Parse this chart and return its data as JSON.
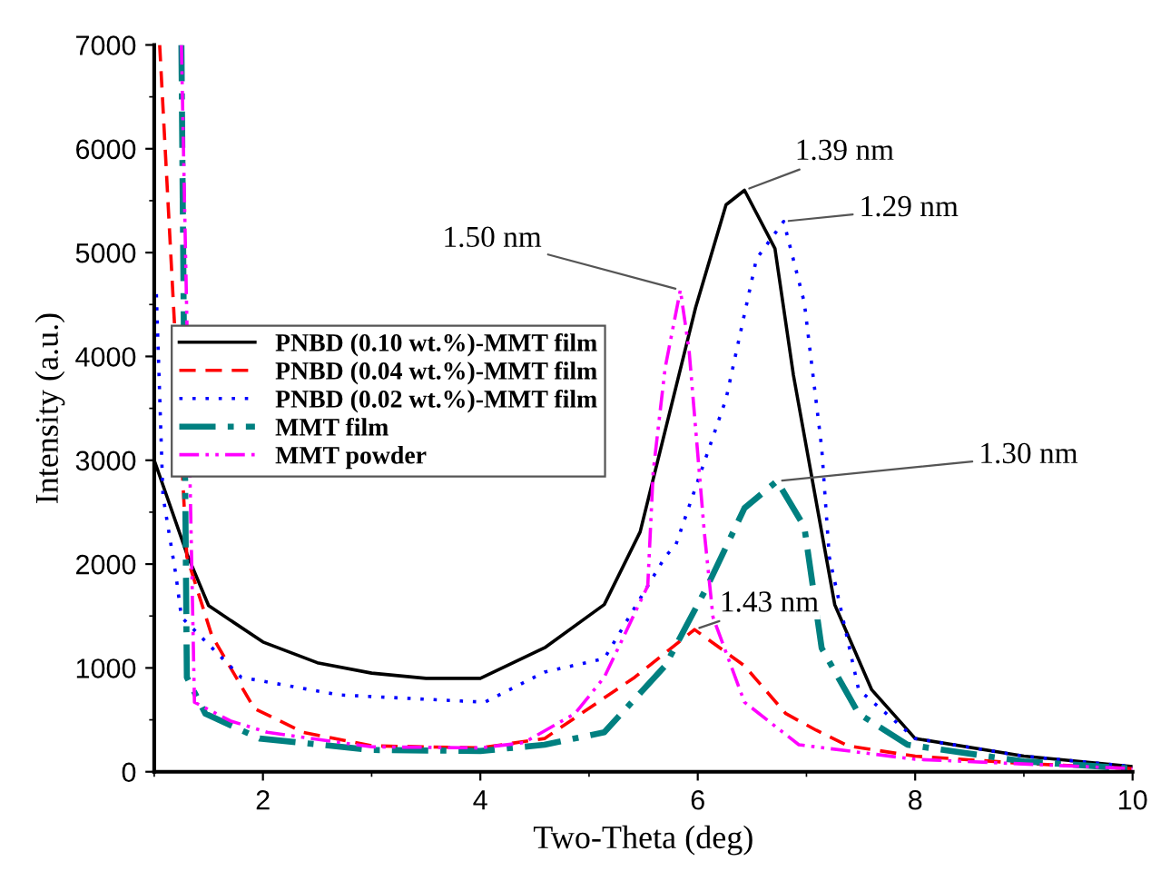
{
  "chart_data": {
    "type": "line",
    "xlabel": "Two-Theta (deg)",
    "ylabel": "Intensity (a.u.)",
    "xlim": [
      1,
      10
    ],
    "ylim": [
      0,
      7000
    ],
    "xticks": [
      2,
      4,
      6,
      8,
      10
    ],
    "yticks": [
      0,
      1000,
      2000,
      3000,
      4000,
      5000,
      6000,
      7000
    ],
    "grid": false,
    "legend": "left",
    "marker": "none",
    "annotations": [
      {
        "text": "1.39 nm",
        "x": 6.43,
        "y": 5600
      },
      {
        "text": "1.29 nm",
        "x": 6.79,
        "y": 5300
      },
      {
        "text": "1.50 nm",
        "x": 5.84,
        "y": 4640
      },
      {
        "text": "1.30 nm",
        "x": 6.73,
        "y": 2800
      },
      {
        "text": "1.43 nm",
        "x": 5.97,
        "y": 1370
      }
    ],
    "series": [
      {
        "name": "PNBD (0.10 wt.%)-MMT film",
        "color": "#000000",
        "line_style": "solid",
        "x": [
          1.0,
          1.3,
          1.5,
          2.0,
          2.5,
          3.0,
          3.5,
          4.0,
          4.6,
          5.14,
          5.47,
          5.98,
          6.26,
          6.43,
          6.71,
          6.88,
          7.04,
          7.26,
          7.6,
          8.0,
          9.0,
          10.0
        ],
        "values": [
          3000,
          2100,
          1600,
          1250,
          1050,
          950,
          900,
          900,
          1200,
          1610,
          2310,
          4470,
          5460,
          5600,
          5040,
          3820,
          2890,
          1610,
          790,
          320,
          150,
          50
        ]
      },
      {
        "name": "PNBD (0.04 wt.%)-MMT film",
        "color": "#ff0000",
        "line_style": "dashed",
        "x": [
          1.05,
          1.3,
          1.53,
          1.92,
          2.37,
          3.0,
          4.0,
          4.59,
          5.42,
          5.97,
          6.43,
          6.81,
          7.09,
          7.38,
          8.0,
          9.0,
          10.0
        ],
        "values": [
          7000,
          2070,
          1310,
          610,
          380,
          250,
          230,
          320,
          910,
          1370,
          1020,
          560,
          400,
          250,
          150,
          80,
          30
        ]
      },
      {
        "name": "PNBD (0.02 wt.%)-MMT film",
        "color": "#0000ff",
        "line_style": "dotted",
        "x": [
          1.02,
          1.08,
          1.2,
          1.25,
          1.8,
          2.7,
          4.04,
          4.59,
          5.14,
          5.7,
          5.8,
          6.26,
          6.54,
          6.79,
          6.98,
          7.14,
          7.21,
          7.48,
          8.0,
          9.0,
          10.0
        ],
        "values": [
          4600,
          2660,
          1890,
          1490,
          910,
          740,
          670,
          960,
          1090,
          2070,
          2190,
          3590,
          4940,
          5300,
          4520,
          3120,
          2070,
          790,
          320,
          150,
          50
        ]
      },
      {
        "name": "MMT film",
        "color": "#008080",
        "line_style": "dashdot",
        "x": [
          1.25,
          1.3,
          1.47,
          1.97,
          3.0,
          4.0,
          4.59,
          5.14,
          5.7,
          6.09,
          6.43,
          6.73,
          6.98,
          7.14,
          7.48,
          7.93,
          9.0,
          10.0
        ],
        "values": [
          7000,
          910,
          560,
          320,
          210,
          200,
          260,
          380,
          1020,
          1790,
          2540,
          2800,
          2360,
          1190,
          560,
          260,
          100,
          30
        ]
      },
      {
        "name": "MMT powder",
        "color": "#ff00ff",
        "line_style": "dashdotdot",
        "x": [
          1.25,
          1.37,
          1.7,
          2.04,
          3.0,
          4.0,
          4.4,
          4.87,
          5.14,
          5.54,
          5.59,
          5.7,
          5.84,
          5.92,
          6.06,
          6.14,
          6.43,
          6.93,
          8.0,
          10.0
        ],
        "values": [
          7000,
          670,
          490,
          380,
          240,
          230,
          280,
          560,
          910,
          1790,
          2890,
          3890,
          4640,
          4060,
          2310,
          1490,
          670,
          260,
          120,
          30
        ]
      }
    ]
  }
}
